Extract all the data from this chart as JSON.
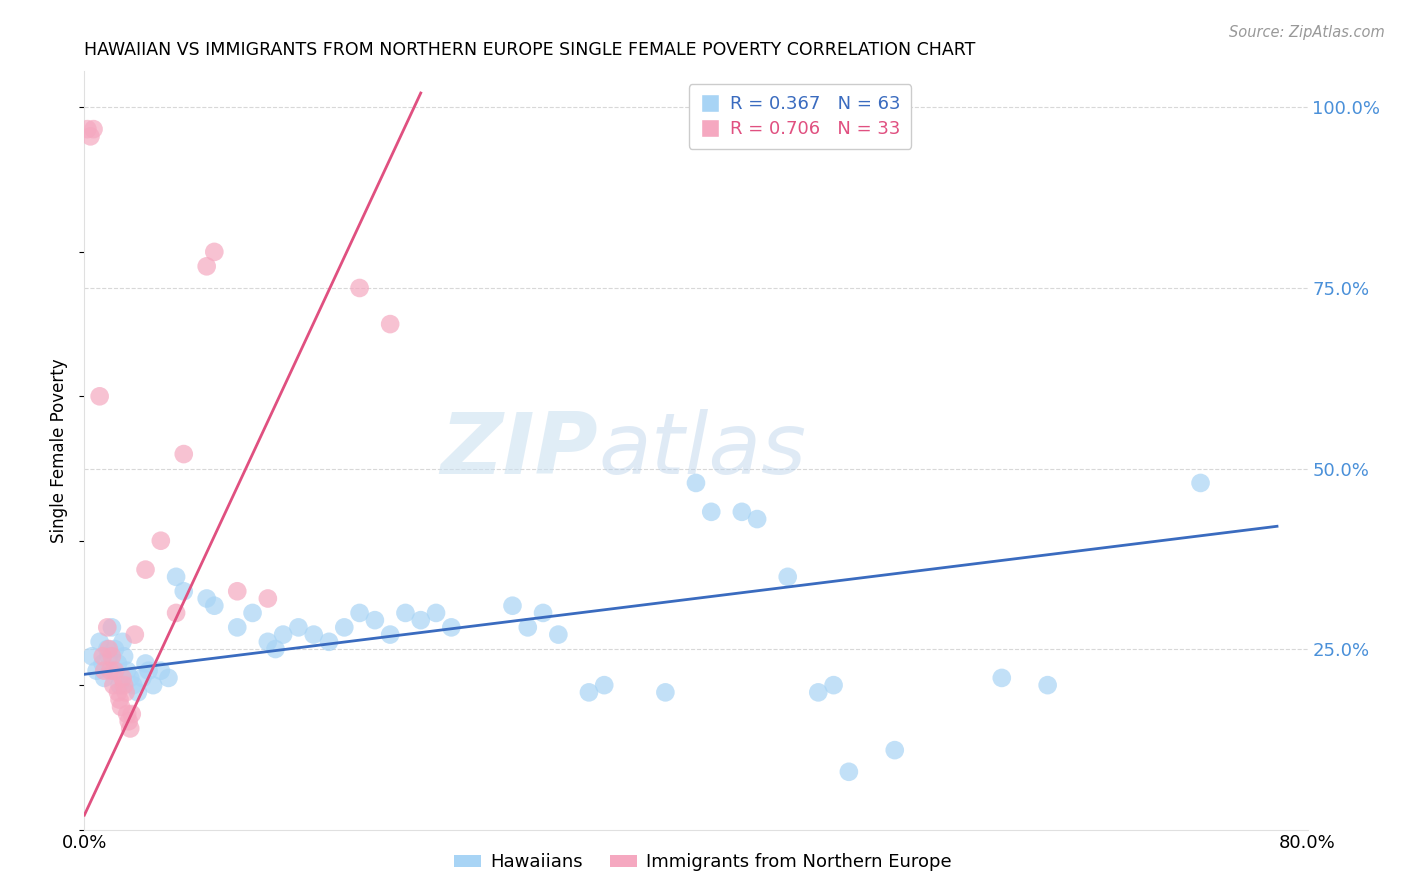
{
  "title": "HAWAIIAN VS IMMIGRANTS FROM NORTHERN EUROPE SINGLE FEMALE POVERTY CORRELATION CHART",
  "source": "Source: ZipAtlas.com",
  "ylabel": "Single Female Poverty",
  "ytick_labels": [
    "100.0%",
    "75.0%",
    "50.0%",
    "25.0%"
  ],
  "ytick_values": [
    1.0,
    0.75,
    0.5,
    0.25
  ],
  "xmin": 0.0,
  "xmax": 0.8,
  "ymin": 0.0,
  "ymax": 1.05,
  "legend_label1": "Hawaiians",
  "legend_label2": "Immigrants from Northern Europe",
  "r1": 0.367,
  "n1": 63,
  "r2": 0.706,
  "n2": 33,
  "color_blue": "#a8d4f5",
  "color_pink": "#f5a8c0",
  "line_blue": "#3a6bbf",
  "line_pink": "#e05080",
  "watermark_zip": "ZIP",
  "watermark_atlas": "atlas",
  "blue_points": [
    [
      0.005,
      0.24
    ],
    [
      0.008,
      0.22
    ],
    [
      0.01,
      0.26
    ],
    [
      0.012,
      0.23
    ],
    [
      0.013,
      0.21
    ],
    [
      0.015,
      0.25
    ],
    [
      0.016,
      0.24
    ],
    [
      0.018,
      0.28
    ],
    [
      0.019,
      0.22
    ],
    [
      0.02,
      0.25
    ],
    [
      0.022,
      0.23
    ],
    [
      0.023,
      0.2
    ],
    [
      0.025,
      0.26
    ],
    [
      0.026,
      0.24
    ],
    [
      0.028,
      0.22
    ],
    [
      0.03,
      0.21
    ],
    [
      0.032,
      0.2
    ],
    [
      0.035,
      0.19
    ],
    [
      0.038,
      0.21
    ],
    [
      0.04,
      0.23
    ],
    [
      0.042,
      0.22
    ],
    [
      0.045,
      0.2
    ],
    [
      0.05,
      0.22
    ],
    [
      0.055,
      0.21
    ],
    [
      0.06,
      0.35
    ],
    [
      0.065,
      0.33
    ],
    [
      0.08,
      0.32
    ],
    [
      0.085,
      0.31
    ],
    [
      0.1,
      0.28
    ],
    [
      0.11,
      0.3
    ],
    [
      0.12,
      0.26
    ],
    [
      0.125,
      0.25
    ],
    [
      0.13,
      0.27
    ],
    [
      0.14,
      0.28
    ],
    [
      0.15,
      0.27
    ],
    [
      0.16,
      0.26
    ],
    [
      0.17,
      0.28
    ],
    [
      0.18,
      0.3
    ],
    [
      0.19,
      0.29
    ],
    [
      0.2,
      0.27
    ],
    [
      0.21,
      0.3
    ],
    [
      0.22,
      0.29
    ],
    [
      0.23,
      0.3
    ],
    [
      0.24,
      0.28
    ],
    [
      0.28,
      0.31
    ],
    [
      0.29,
      0.28
    ],
    [
      0.3,
      0.3
    ],
    [
      0.31,
      0.27
    ],
    [
      0.33,
      0.19
    ],
    [
      0.34,
      0.2
    ],
    [
      0.38,
      0.19
    ],
    [
      0.4,
      0.48
    ],
    [
      0.41,
      0.44
    ],
    [
      0.43,
      0.44
    ],
    [
      0.44,
      0.43
    ],
    [
      0.46,
      0.35
    ],
    [
      0.48,
      0.19
    ],
    [
      0.49,
      0.2
    ],
    [
      0.5,
      0.08
    ],
    [
      0.53,
      0.11
    ],
    [
      0.6,
      0.21
    ],
    [
      0.63,
      0.2
    ],
    [
      0.73,
      0.48
    ]
  ],
  "pink_points": [
    [
      0.002,
      0.97
    ],
    [
      0.004,
      0.96
    ],
    [
      0.006,
      0.97
    ],
    [
      0.01,
      0.6
    ],
    [
      0.012,
      0.24
    ],
    [
      0.013,
      0.22
    ],
    [
      0.015,
      0.28
    ],
    [
      0.016,
      0.25
    ],
    [
      0.017,
      0.22
    ],
    [
      0.018,
      0.24
    ],
    [
      0.019,
      0.2
    ],
    [
      0.02,
      0.22
    ],
    [
      0.022,
      0.19
    ],
    [
      0.023,
      0.18
    ],
    [
      0.024,
      0.17
    ],
    [
      0.025,
      0.21
    ],
    [
      0.026,
      0.2
    ],
    [
      0.027,
      0.19
    ],
    [
      0.028,
      0.16
    ],
    [
      0.029,
      0.15
    ],
    [
      0.03,
      0.14
    ],
    [
      0.031,
      0.16
    ],
    [
      0.033,
      0.27
    ],
    [
      0.04,
      0.36
    ],
    [
      0.05,
      0.4
    ],
    [
      0.06,
      0.3
    ],
    [
      0.065,
      0.52
    ],
    [
      0.08,
      0.78
    ],
    [
      0.085,
      0.8
    ],
    [
      0.1,
      0.33
    ],
    [
      0.12,
      0.32
    ],
    [
      0.18,
      0.75
    ],
    [
      0.2,
      0.7
    ]
  ],
  "blue_line_x": [
    0.0,
    0.78
  ],
  "blue_line_y": [
    0.215,
    0.42
  ],
  "pink_line_x": [
    0.0,
    0.22
  ],
  "pink_line_y": [
    0.02,
    1.02
  ]
}
